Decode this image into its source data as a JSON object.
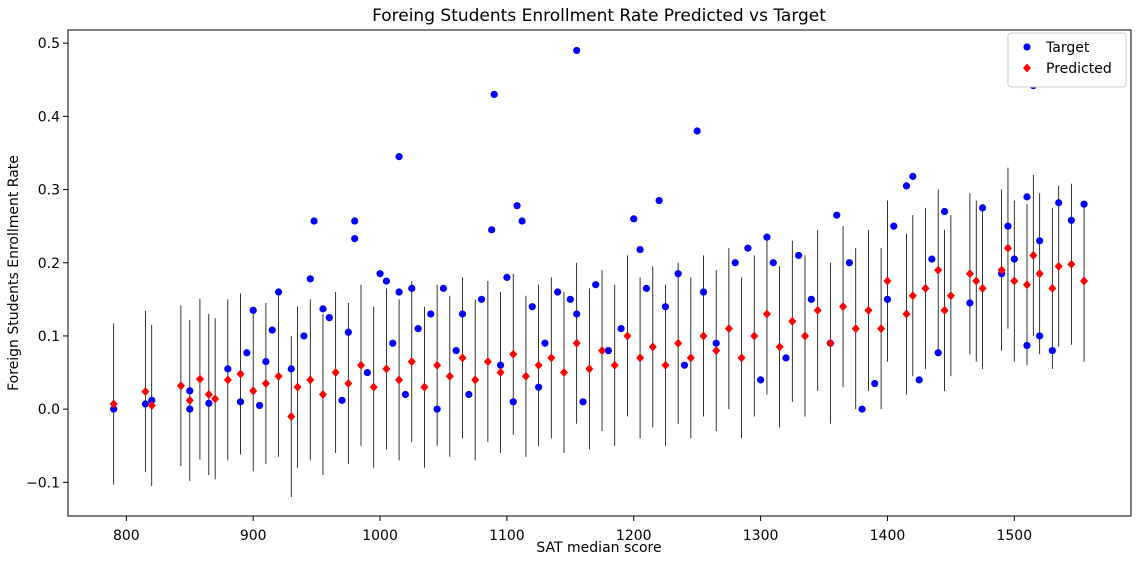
{
  "chart_data": {
    "type": "scatter",
    "title": "Foreing Students Enrollment Rate Predicted vs Target",
    "xlabel": "SAT median score",
    "ylabel": "Foreign Students Enrollment Rate",
    "xlim": [
      754,
      1592
    ],
    "ylim": [
      -0.146,
      0.518
    ],
    "xticks": [
      800,
      900,
      1000,
      1100,
      1200,
      1300,
      1400,
      1500
    ],
    "yticks": [
      {
        "value": -0.1,
        "label": "−0.1"
      },
      {
        "value": 0,
        "label": "0.0"
      },
      0.1,
      0.2,
      0.3,
      0.4,
      0.5
    ],
    "legend": "upper right",
    "series": [
      {
        "name": "Target",
        "color": "#0000ff",
        "marker": "circle",
        "x": [
          790,
          815,
          820,
          850,
          850,
          865,
          880,
          890,
          895,
          900,
          905,
          910,
          915,
          920,
          930,
          940,
          945,
          948,
          955,
          960,
          970,
          975,
          980,
          980,
          990,
          1000,
          1005,
          1010,
          1015,
          1015,
          1020,
          1025,
          1030,
          1040,
          1045,
          1050,
          1060,
          1065,
          1070,
          1080,
          1088,
          1090,
          1095,
          1100,
          1105,
          1108,
          1112,
          1120,
          1125,
          1130,
          1140,
          1150,
          1155,
          1155,
          1160,
          1170,
          1180,
          1190,
          1200,
          1205,
          1210,
          1220,
          1225,
          1235,
          1240,
          1250,
          1255,
          1265,
          1280,
          1290,
          1300,
          1305,
          1310,
          1320,
          1330,
          1340,
          1355,
          1360,
          1370,
          1380,
          1390,
          1400,
          1405,
          1415,
          1420,
          1425,
          1435,
          1440,
          1445,
          1465,
          1475,
          1490,
          1495,
          1500,
          1510,
          1510,
          1515,
          1520,
          1520,
          1530,
          1535,
          1545,
          1555
        ],
        "values": [
          0.0,
          0.007,
          0.012,
          0.0,
          0.025,
          0.008,
          0.055,
          0.01,
          0.077,
          0.135,
          0.005,
          0.065,
          0.108,
          0.16,
          0.055,
          0.1,
          0.178,
          0.257,
          0.137,
          0.125,
          0.012,
          0.105,
          0.257,
          0.233,
          0.05,
          0.185,
          0.175,
          0.09,
          0.345,
          0.16,
          0.02,
          0.165,
          0.11,
          0.13,
          0.0,
          0.165,
          0.08,
          0.13,
          0.02,
          0.15,
          0.245,
          0.43,
          0.06,
          0.18,
          0.01,
          0.278,
          0.257,
          0.14,
          0.03,
          0.09,
          0.16,
          0.15,
          0.49,
          0.13,
          0.01,
          0.17,
          0.08,
          0.11,
          0.26,
          0.218,
          0.165,
          0.285,
          0.14,
          0.185,
          0.06,
          0.38,
          0.16,
          0.09,
          0.2,
          0.22,
          0.04,
          0.235,
          0.2,
          0.07,
          0.21,
          0.15,
          0.09,
          0.265,
          0.2,
          0.0,
          0.035,
          0.15,
          0.25,
          0.305,
          0.318,
          0.04,
          0.205,
          0.077,
          0.27,
          0.145,
          0.275,
          0.185,
          0.25,
          0.205,
          0.087,
          0.29,
          0.442,
          0.1,
          0.23,
          0.08,
          0.282,
          0.258,
          0.28
        ]
      },
      {
        "name": "Predicted",
        "color": "#ff0000",
        "marker": "diamond",
        "error": 0.11,
        "x": [
          790,
          815,
          820,
          843,
          850,
          858,
          865,
          870,
          880,
          890,
          900,
          910,
          920,
          930,
          935,
          945,
          955,
          965,
          975,
          985,
          995,
          1005,
          1015,
          1025,
          1035,
          1045,
          1055,
          1065,
          1075,
          1085,
          1095,
          1105,
          1115,
          1125,
          1135,
          1145,
          1155,
          1165,
          1175,
          1185,
          1195,
          1205,
          1215,
          1225,
          1235,
          1245,
          1255,
          1265,
          1275,
          1285,
          1295,
          1305,
          1315,
          1325,
          1335,
          1345,
          1355,
          1365,
          1375,
          1385,
          1395,
          1400,
          1415,
          1420,
          1430,
          1440,
          1445,
          1450,
          1465,
          1470,
          1475,
          1490,
          1495,
          1500,
          1510,
          1515,
          1520,
          1530,
          1535,
          1545,
          1555
        ],
        "values": [
          0.007,
          0.024,
          0.005,
          0.032,
          0.012,
          0.041,
          0.02,
          0.014,
          0.04,
          0.048,
          0.025,
          0.035,
          0.045,
          -0.01,
          0.03,
          0.04,
          0.02,
          0.05,
          0.035,
          0.06,
          0.03,
          0.055,
          0.04,
          0.065,
          0.03,
          0.06,
          0.045,
          0.07,
          0.04,
          0.065,
          0.05,
          0.075,
          0.045,
          0.06,
          0.07,
          0.05,
          0.09,
          0.055,
          0.08,
          0.06,
          0.1,
          0.07,
          0.085,
          0.06,
          0.09,
          0.07,
          0.1,
          0.08,
          0.11,
          0.07,
          0.1,
          0.13,
          0.085,
          0.12,
          0.1,
          0.135,
          0.09,
          0.14,
          0.11,
          0.135,
          0.11,
          0.175,
          0.13,
          0.155,
          0.165,
          0.19,
          0.135,
          0.155,
          0.185,
          0.175,
          0.165,
          0.19,
          0.22,
          0.175,
          0.17,
          0.21,
          0.185,
          0.165,
          0.195,
          0.198,
          0.175
        ]
      }
    ]
  }
}
